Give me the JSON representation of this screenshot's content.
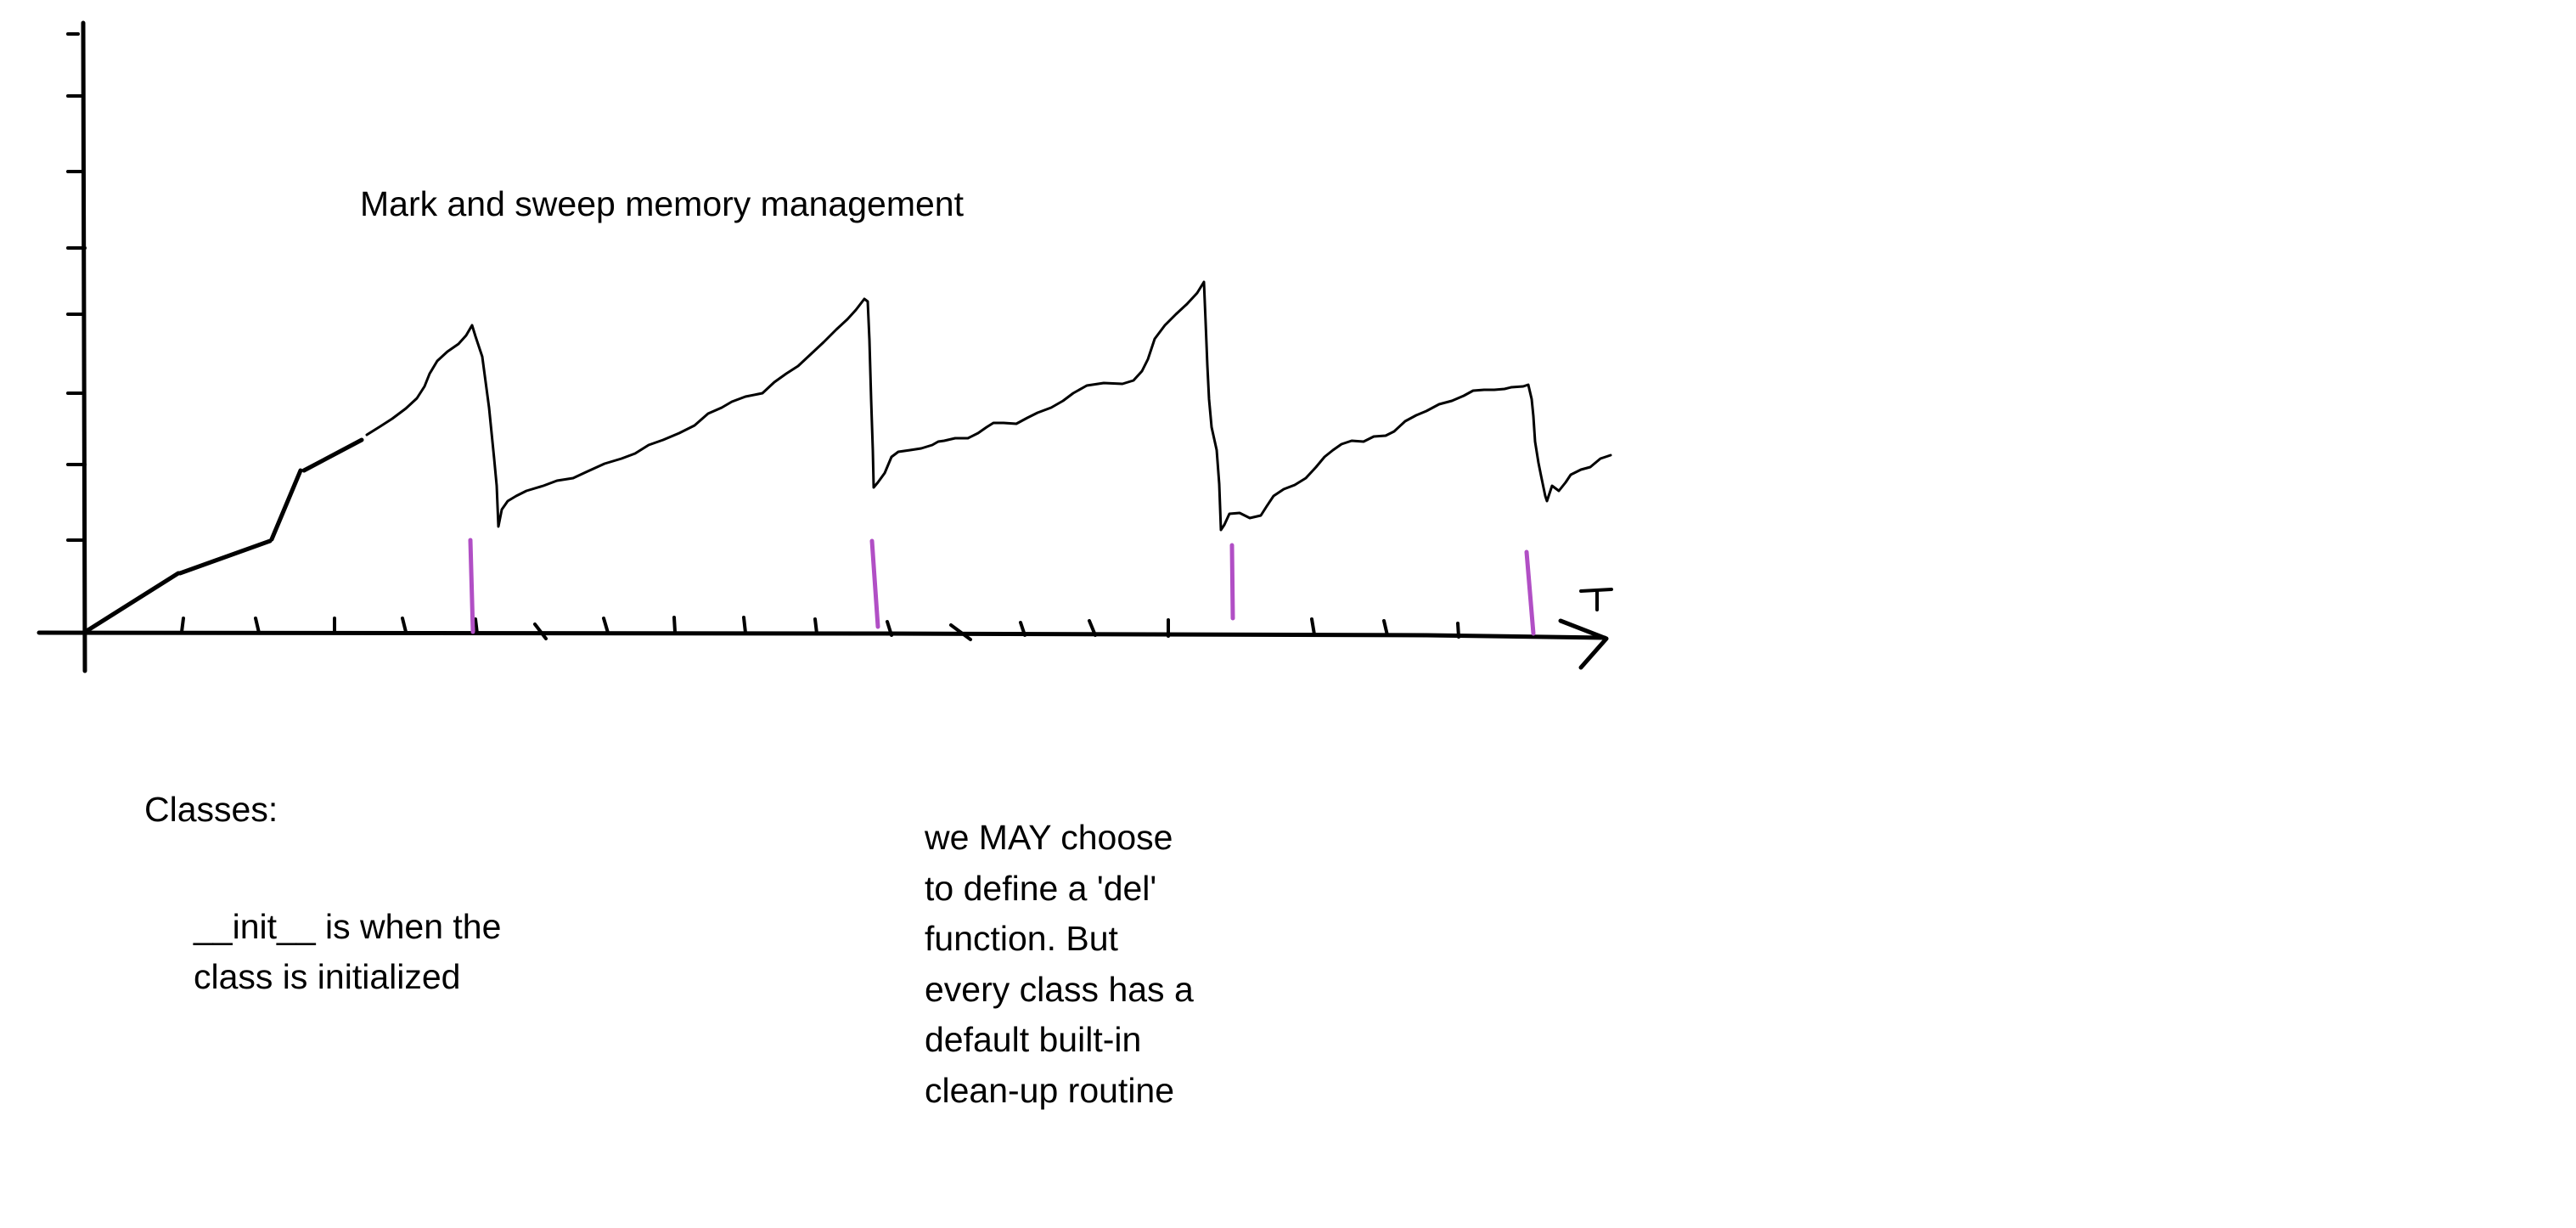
{
  "title": "Mark and sweep memory management",
  "axis": {
    "x_label": "T"
  },
  "colors": {
    "ink": "#000000",
    "marker": "#b14fc5",
    "background": "#ffffff"
  },
  "notes": {
    "classes_heading": "Classes:",
    "init_note": "__init__ is when the\nclass is initialized",
    "del_note": "we MAY choose\nto define a 'del'\nfunction. But\nevery class has a\ndefault built-in\nclean-up routine"
  }
}
